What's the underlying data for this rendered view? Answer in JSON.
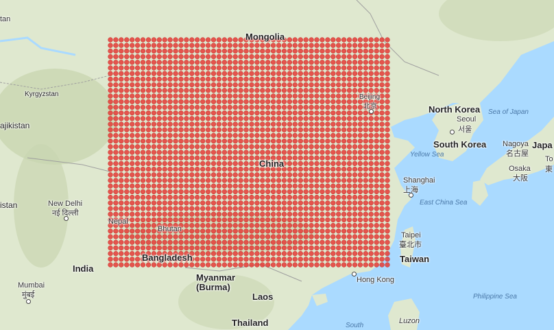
{
  "map": {
    "labels": {
      "mongolia": "Mongolia",
      "kyrgyzstan": "Kyrgyzstan",
      "tajikistan": "ajikistan",
      "istan": "istan",
      "tan_top": "tan",
      "north_korea": "North Korea",
      "south_korea": "South Korea",
      "seoul": "Seoul",
      "seoul_local": "서울",
      "sea_of_japan": "Sea of Japan",
      "yellow_sea": "Yellow Sea",
      "japan": "Japa",
      "nagoya": "Nagoya",
      "nagoya_local": "名古屋",
      "osaka": "Osaka",
      "osaka_local": "大阪",
      "tokyo_fragment": "To",
      "tokyo_local_fragment": "東",
      "beijing": "Beijing",
      "beijing_local": "北京",
      "china": "China",
      "shanghai": "Shanghai",
      "shanghai_local": "上海",
      "east_china_sea": "East China Sea",
      "new_delhi": "New Delhi",
      "new_delhi_local": "नई दिल्ली",
      "india": "India",
      "mumbai": "Mumbai",
      "mumbai_local": "मुंबई",
      "nepal": "Nepal",
      "bhutan": "Bhutan",
      "bangladesh": "Bangladesh",
      "myanmar_1": "Myanmar",
      "myanmar_2": "(Burma)",
      "laos": "Laos",
      "thailand": "Thailand",
      "hong_kong": "Hong Kong",
      "taipei": "Taipei",
      "taipei_local": "臺北市",
      "taiwan": "Taiwan",
      "philippine_sea": "Philippine Sea",
      "luzon": "Luzon",
      "south": "South"
    },
    "overlay": {
      "type": "marker-grid",
      "color": "#e53935",
      "rows": 41,
      "cols": 52
    },
    "colors": {
      "water": "#aadaff",
      "land": "#dfe8cf",
      "mountains": "#c9d6b0",
      "marker": "#e53935"
    }
  }
}
